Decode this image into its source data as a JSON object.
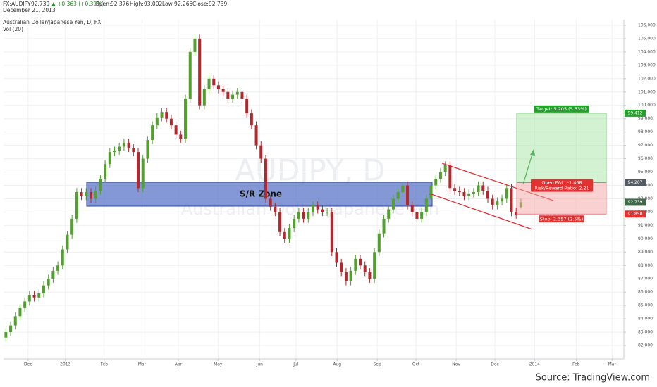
{
  "header": {
    "symbol": "FX:AUDJPY",
    "last": "92.739",
    "change": "▲ +0.363 (+0.39%)",
    "open_label": "Open:",
    "open": "92.376",
    "high_label": "High:",
    "high": "93.002",
    "low_label": "Low:",
    "low": "92.265",
    "close_label": "Close:",
    "close": "92.739",
    "date": "December 21, 2013",
    "study": "Vol (20)"
  },
  "footer": {
    "source": "Source: TradingView.com"
  },
  "chart_data": {
    "type": "candlestick",
    "title": "Australian Dollar/Japanese Yen, D, FX",
    "watermark": "AUDJPY, D",
    "watermark_subtitle": "Australian Dollar/Japanese Yen",
    "up_color": "#53a02f",
    "down_color": "#b3282d",
    "open": [
      82.6,
      83.0,
      83.5,
      84.2,
      84.8,
      85.3,
      85.8,
      85.6,
      85.9,
      86.5,
      87.0,
      87.6,
      88.0,
      89.2,
      90.3,
      91.5,
      93.5,
      93.2,
      93.5,
      93.0,
      93.6,
      94.5,
      95.6,
      96.5,
      96.6,
      96.9,
      97.2,
      96.8,
      96.5,
      93.8,
      96.0,
      97.4,
      98.5,
      99.1,
      99.5,
      99.0,
      98.5,
      97.8,
      97.5,
      100.5,
      104.0,
      105.0,
      100.0,
      101.2,
      102.0,
      101.5,
      101.2,
      101.0,
      100.5,
      100.8,
      101.0,
      100.5,
      99.4,
      98.5,
      97.0,
      96.0,
      93.0,
      92.4,
      92.0,
      90.5,
      90.0,
      90.8,
      91.5,
      92.0,
      91.5,
      92.0,
      92.5,
      92.2,
      92.0,
      92.0,
      89.0,
      88.2,
      87.5,
      86.8,
      87.6,
      88.5,
      88.0,
      87.5,
      87.0,
      89.0,
      90.4,
      91.5,
      92.2,
      93.0,
      93.5,
      94.0,
      92.5,
      92.0,
      91.5,
      92.0,
      93.0,
      94.0,
      94.5,
      95.0,
      95.5,
      93.8,
      93.6,
      93.5,
      93.2,
      93.4,
      93.5,
      94.0,
      93.6,
      93.0,
      92.5,
      92.8,
      93.0,
      93.8,
      92.0,
      92.376
    ],
    "high": [
      83.3,
      83.8,
      84.5,
      85.1,
      85.6,
      86.1,
      86.1,
      86.2,
      86.8,
      87.3,
      87.9,
      88.3,
      89.5,
      90.6,
      91.8,
      93.8,
      93.8,
      93.8,
      93.8,
      93.9,
      94.8,
      95.9,
      96.8,
      96.9,
      97.2,
      97.5,
      97.5,
      97.1,
      96.8,
      96.3,
      97.7,
      98.8,
      99.4,
      99.8,
      99.8,
      99.3,
      98.8,
      98.1,
      100.8,
      104.3,
      105.3,
      105.3,
      101.5,
      102.3,
      102.3,
      101.8,
      101.5,
      101.3,
      101.1,
      101.3,
      101.3,
      100.8,
      99.7,
      98.8,
      97.3,
      96.3,
      93.3,
      92.7,
      92.3,
      90.8,
      91.1,
      91.8,
      92.3,
      92.3,
      92.3,
      92.8,
      92.8,
      92.5,
      92.3,
      92.3,
      89.3,
      88.5,
      87.8,
      87.9,
      88.8,
      88.8,
      88.3,
      87.8,
      89.3,
      90.7,
      91.8,
      92.5,
      93.3,
      93.8,
      94.3,
      94.3,
      92.8,
      92.3,
      92.3,
      93.3,
      94.3,
      94.8,
      95.3,
      95.8,
      95.8,
      94.1,
      93.9,
      93.8,
      93.7,
      93.8,
      94.3,
      94.3,
      93.9,
      93.3,
      93.1,
      93.3,
      94.1,
      94.1,
      92.3,
      93.002
    ],
    "low": [
      82.3,
      82.7,
      83.2,
      83.9,
      84.5,
      85.0,
      85.3,
      85.3,
      85.6,
      86.2,
      86.7,
      87.3,
      87.7,
      88.9,
      90.0,
      91.2,
      92.9,
      92.9,
      92.7,
      92.7,
      93.3,
      94.2,
      95.3,
      96.2,
      96.3,
      96.6,
      96.5,
      96.2,
      93.5,
      93.5,
      95.7,
      97.1,
      98.2,
      98.8,
      98.7,
      98.2,
      97.5,
      97.2,
      97.2,
      100.2,
      103.7,
      99.7,
      99.7,
      100.9,
      101.2,
      100.9,
      100.7,
      100.2,
      100.2,
      100.5,
      100.2,
      99.1,
      98.2,
      96.7,
      95.7,
      92.7,
      92.1,
      91.7,
      90.2,
      89.7,
      89.7,
      90.5,
      91.2,
      91.2,
      91.2,
      91.7,
      91.9,
      91.7,
      91.7,
      88.7,
      87.9,
      87.2,
      86.5,
      86.5,
      87.3,
      87.7,
      87.2,
      86.7,
      86.7,
      88.7,
      90.1,
      91.2,
      91.9,
      92.7,
      93.2,
      92.2,
      91.7,
      91.2,
      91.2,
      91.7,
      92.7,
      93.7,
      94.2,
      94.7,
      93.5,
      93.3,
      93.2,
      92.9,
      92.9,
      93.1,
      93.2,
      93.3,
      92.7,
      92.2,
      92.2,
      92.5,
      92.7,
      91.7,
      91.5,
      92.265
    ],
    "close": [
      83.0,
      83.5,
      84.2,
      84.8,
      85.3,
      85.8,
      85.6,
      85.9,
      86.5,
      87.0,
      87.6,
      88.0,
      89.2,
      90.3,
      91.5,
      93.5,
      93.2,
      93.5,
      93.0,
      93.6,
      94.5,
      95.6,
      96.5,
      96.6,
      96.9,
      97.2,
      96.8,
      96.5,
      93.8,
      96.0,
      97.4,
      98.5,
      99.1,
      99.5,
      99.0,
      98.5,
      97.8,
      97.5,
      100.5,
      104.0,
      105.0,
      100.0,
      101.2,
      102.0,
      101.5,
      101.2,
      101.0,
      100.5,
      100.8,
      101.0,
      100.5,
      99.4,
      98.5,
      97.0,
      96.0,
      93.0,
      92.4,
      92.0,
      90.5,
      90.0,
      90.8,
      91.5,
      92.0,
      91.5,
      92.0,
      92.5,
      92.2,
      92.0,
      92.0,
      89.0,
      88.2,
      87.5,
      86.8,
      87.6,
      88.5,
      88.0,
      87.5,
      87.0,
      89.0,
      90.4,
      91.5,
      92.2,
      93.0,
      93.5,
      94.0,
      92.5,
      92.0,
      91.5,
      92.0,
      93.0,
      94.0,
      94.5,
      95.0,
      95.5,
      93.8,
      93.6,
      93.5,
      93.2,
      93.4,
      93.5,
      94.0,
      93.6,
      93.0,
      92.5,
      92.8,
      93.0,
      93.8,
      92.0,
      91.8,
      92.739
    ],
    "xlim": [
      -0.5,
      130.8
    ],
    "xticks": [
      {
        "value": 4.7,
        "label": "Dec"
      },
      {
        "value": 12.6,
        "label": "2013"
      },
      {
        "value": 20.8,
        "label": "Feb"
      },
      {
        "value": 28.8,
        "label": "Mar"
      },
      {
        "value": 36.5,
        "label": "Apr"
      },
      {
        "value": 44.9,
        "label": "May"
      },
      {
        "value": 53.7,
        "label": "Jun"
      },
      {
        "value": 61.4,
        "label": "Jul"
      },
      {
        "value": 70.1,
        "label": "Aug"
      },
      {
        "value": 78.6,
        "label": "Sep"
      },
      {
        "value": 86.8,
        "label": "Oct"
      },
      {
        "value": 95.3,
        "label": "Nov"
      },
      {
        "value": 103.5,
        "label": "Dec"
      },
      {
        "value": 111.9,
        "label": "2014"
      },
      {
        "value": 120.7,
        "label": "Feb"
      },
      {
        "value": 128.3,
        "label": "Mar"
      }
    ],
    "ylim": [
      81.0,
      106.42
    ],
    "yticks": [
      {
        "value": 82,
        "label": "82.000"
      },
      {
        "value": 83,
        "label": "83.000"
      },
      {
        "value": 84,
        "label": "84.000"
      },
      {
        "value": 85,
        "label": "85.000"
      },
      {
        "value": 86,
        "label": "86.000"
      },
      {
        "value": 87,
        "label": "87.000"
      },
      {
        "value": 88,
        "label": "88.000"
      },
      {
        "value": 89,
        "label": "89.000"
      },
      {
        "value": 90,
        "label": "90.000"
      },
      {
        "value": 91,
        "label": "91.000"
      },
      {
        "value": 92,
        "label": "92.000"
      },
      {
        "value": 93,
        "label": "93.000"
      },
      {
        "value": 94,
        "label": "94.000"
      },
      {
        "value": 95,
        "label": "95.000"
      },
      {
        "value": 96,
        "label": "96.000"
      },
      {
        "value": 97,
        "label": "97.000"
      },
      {
        "value": 98,
        "label": "98.000"
      },
      {
        "value": 99,
        "label": "99.000"
      },
      {
        "value": 100,
        "label": "100.000"
      },
      {
        "value": 101,
        "label": "101.000"
      },
      {
        "value": 102,
        "label": "102.000"
      },
      {
        "value": 103,
        "label": "103.000"
      },
      {
        "value": 104,
        "label": "104.000"
      },
      {
        "value": 105,
        "label": "105.000"
      },
      {
        "value": 106,
        "label": "106.000"
      }
    ],
    "grid": true,
    "zone_label": "S/R Zone",
    "position": {
      "target": {
        "value": 99.412,
        "label": "99.412"
      },
      "entry": 94.207,
      "last": 92.739,
      "stop": {
        "value": 91.85,
        "label": "91.850"
      },
      "target_text": "Target: 5.205 (5.53%)",
      "pnl_text": "Open P&L: -1.468",
      "ratio_text": "Risk/Reward Ratio: 2.21",
      "stop_text": "Stop: 2.357 (2.5%)"
    }
  }
}
